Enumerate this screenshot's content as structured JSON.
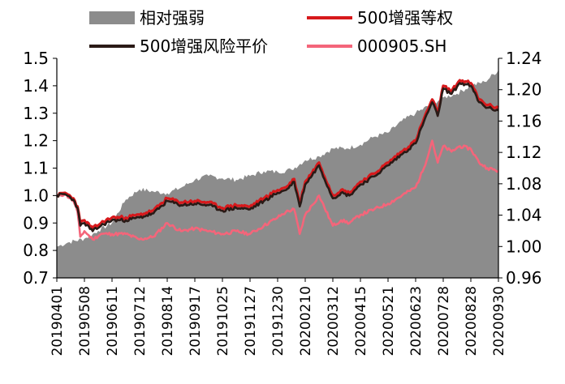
{
  "chart_data": {
    "type": "area+line",
    "title": "",
    "legend_position": "top",
    "legend": [
      {
        "key": "rel",
        "label": "相对强弱",
        "kind": "area",
        "color": "#8c8c8c"
      },
      {
        "key": "eq",
        "label": "500增强等权",
        "kind": "line",
        "color": "#d7191c"
      },
      {
        "key": "rp",
        "label": "500增强风险平价",
        "kind": "line",
        "color": "#2a1a16"
      },
      {
        "key": "idx",
        "label": "000905.SH",
        "kind": "line",
        "color": "#f4657a"
      }
    ],
    "y_left": {
      "min": 0.7,
      "max": 1.5,
      "ticks": [
        "0.7",
        "0.8",
        "0.9",
        "1.0",
        "1.1",
        "1.2",
        "1.3",
        "1.4",
        "1.5"
      ]
    },
    "y_right": {
      "min": 0.96,
      "max": 1.24,
      "ticks": [
        "0.96",
        "1.00",
        "1.04",
        "1.08",
        "1.12",
        "1.16",
        "1.20",
        "1.24"
      ]
    },
    "x_ticks": [
      "20190401",
      "20190508",
      "20190611",
      "20190712",
      "20190814",
      "20190917",
      "20191025",
      "20191127",
      "20191230",
      "20200210",
      "20200312",
      "20200415",
      "20200521",
      "20200623",
      "20200728",
      "20200828",
      "20200930"
    ],
    "series": [
      {
        "key": "rel",
        "axis": "right",
        "x": [
          0,
          0.02,
          0.4,
          1.0,
          1.5,
          2.0,
          2.5,
          3.0,
          3.5,
          4.0,
          4.5,
          5.0,
          5.5,
          6.0,
          6.5,
          7.0,
          7.5,
          8.0,
          8.5,
          9.0,
          9.5,
          10.0,
          10.5,
          11.0,
          11.5,
          12.0,
          12.5,
          13.0,
          13.5,
          14.0,
          14.5,
          15.0,
          15.5,
          16.0
        ],
        "values": [
          1.0,
          1.0,
          1.005,
          1.01,
          1.02,
          1.03,
          1.06,
          1.073,
          1.07,
          1.068,
          1.075,
          1.085,
          1.09,
          1.087,
          1.085,
          1.09,
          1.096,
          1.095,
          1.098,
          1.11,
          1.115,
          1.125,
          1.125,
          1.13,
          1.14,
          1.145,
          1.16,
          1.17,
          1.18,
          1.19,
          1.195,
          1.205,
          1.21,
          1.225
        ]
      },
      {
        "key": "eq",
        "axis": "left",
        "x": [
          0,
          0.3,
          0.6,
          0.75,
          0.85,
          1.0,
          1.3,
          1.6,
          2.0,
          2.5,
          3.0,
          3.5,
          4.0,
          4.5,
          5.0,
          5.5,
          6.0,
          6.5,
          7.0,
          7.5,
          8.0,
          8.3,
          8.6,
          8.8,
          9.0,
          9.5,
          10.0,
          10.3,
          10.6,
          11.0,
          11.5,
          12.0,
          12.5,
          13.0,
          13.3,
          13.6,
          13.8,
          14.0,
          14.3,
          14.6,
          15.0,
          15.3,
          15.6,
          16.0
        ],
        "values": [
          1.0,
          1.01,
          0.99,
          0.96,
          0.9,
          0.91,
          0.88,
          0.9,
          0.92,
          0.92,
          0.93,
          0.945,
          0.99,
          0.975,
          0.98,
          0.975,
          0.955,
          0.965,
          0.96,
          0.99,
          1.02,
          1.03,
          1.06,
          0.97,
          1.05,
          1.12,
          1.0,
          1.02,
          1.01,
          1.05,
          1.08,
          1.12,
          1.16,
          1.2,
          1.28,
          1.35,
          1.3,
          1.4,
          1.38,
          1.42,
          1.41,
          1.35,
          1.33,
          1.32
        ]
      },
      {
        "key": "rp",
        "axis": "left",
        "x": [
          0,
          0.3,
          0.6,
          0.75,
          0.85,
          1.0,
          1.3,
          1.6,
          2.0,
          2.5,
          3.0,
          3.5,
          4.0,
          4.5,
          5.0,
          5.5,
          6.0,
          6.5,
          7.0,
          7.5,
          8.0,
          8.3,
          8.6,
          8.8,
          9.0,
          9.5,
          10.0,
          10.3,
          10.6,
          11.0,
          11.5,
          12.0,
          12.5,
          13.0,
          13.3,
          13.6,
          13.8,
          14.0,
          14.3,
          14.6,
          15.0,
          15.3,
          15.6,
          16.0
        ],
        "values": [
          1.0,
          1.005,
          0.985,
          0.955,
          0.89,
          0.9,
          0.87,
          0.89,
          0.91,
          0.91,
          0.92,
          0.935,
          0.98,
          0.965,
          0.97,
          0.965,
          0.945,
          0.955,
          0.95,
          0.98,
          1.01,
          1.02,
          1.05,
          0.96,
          1.04,
          1.11,
          0.99,
          1.01,
          1.0,
          1.04,
          1.07,
          1.11,
          1.15,
          1.19,
          1.27,
          1.34,
          1.29,
          1.39,
          1.37,
          1.41,
          1.4,
          1.34,
          1.32,
          1.31
        ]
      },
      {
        "key": "idx",
        "axis": "left",
        "x": [
          0,
          0.3,
          0.6,
          0.75,
          0.85,
          1.0,
          1.3,
          1.6,
          2.0,
          2.5,
          3.0,
          3.5,
          4.0,
          4.5,
          5.0,
          5.5,
          6.0,
          6.5,
          7.0,
          7.5,
          8.0,
          8.3,
          8.6,
          8.8,
          9.0,
          9.5,
          10.0,
          10.3,
          10.6,
          11.0,
          11.5,
          12.0,
          12.5,
          13.0,
          13.3,
          13.6,
          13.8,
          14.0,
          14.3,
          14.6,
          15.0,
          15.3,
          15.6,
          16.0
        ],
        "values": [
          1.0,
          1.005,
          0.98,
          0.94,
          0.85,
          0.87,
          0.84,
          0.86,
          0.86,
          0.86,
          0.84,
          0.85,
          0.9,
          0.87,
          0.88,
          0.87,
          0.86,
          0.87,
          0.86,
          0.89,
          0.92,
          0.94,
          0.95,
          0.86,
          0.93,
          1.0,
          0.89,
          0.91,
          0.9,
          0.93,
          0.95,
          0.97,
          1.0,
          1.03,
          1.1,
          1.2,
          1.12,
          1.18,
          1.16,
          1.18,
          1.17,
          1.12,
          1.1,
          1.09
        ]
      }
    ]
  }
}
